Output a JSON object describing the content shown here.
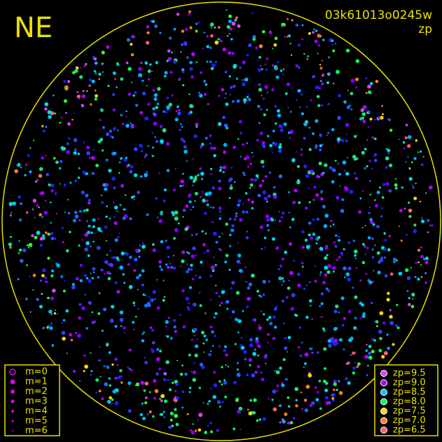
{
  "header": {
    "direction": "NE",
    "frame_id": "03k61013o0245w",
    "mode": "zp"
  },
  "border_color": "#e8e000",
  "legend_m": {
    "color": "#e000e0",
    "items": [
      {
        "label": "m=0"
      },
      {
        "label": "m=1"
      },
      {
        "label": "m=2"
      },
      {
        "label": "m=3"
      },
      {
        "label": "m=4"
      },
      {
        "label": "m=5"
      },
      {
        "label": "m=6"
      }
    ]
  },
  "legend_zp": {
    "items": [
      {
        "label": "zp=9.5",
        "color": "#e040ff"
      },
      {
        "label": "zp=9.0",
        "color": "#b000ff"
      },
      {
        "label": "zp=8.5",
        "color": "#00c8ff"
      },
      {
        "label": "zp=8.0",
        "color": "#00ff60"
      },
      {
        "label": "zp=7.5",
        "color": "#ffd800"
      },
      {
        "label": "zp=7.0",
        "color": "#ff8020"
      },
      {
        "label": "zp=6.5",
        "color": "#ff6070"
      }
    ]
  }
}
